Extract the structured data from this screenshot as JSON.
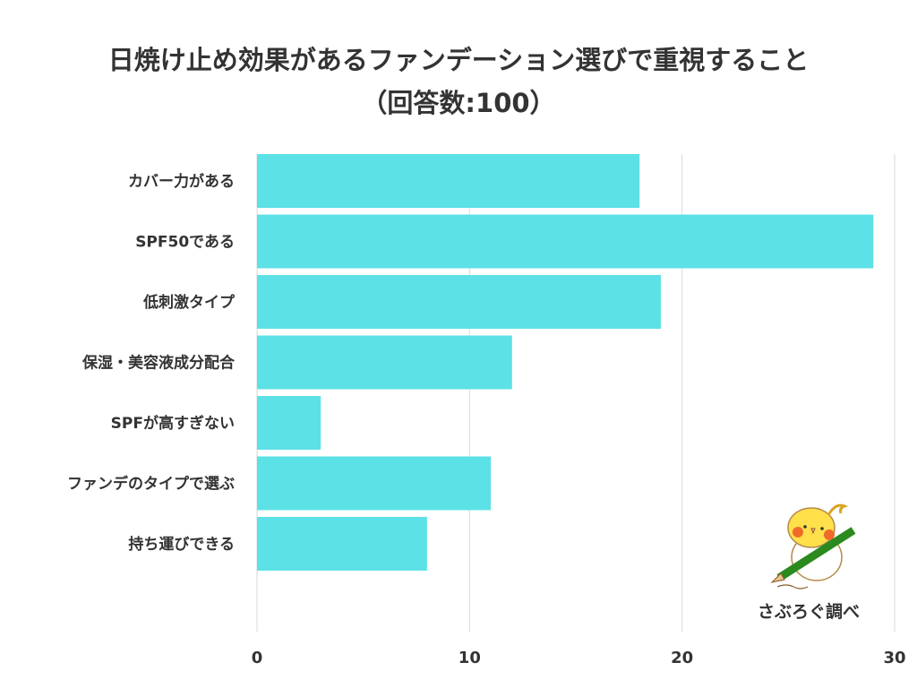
{
  "chart_data": {
    "type": "bar",
    "orientation": "horizontal",
    "title": "日焼け止め効果があるファンデーション選びで重視すること",
    "subtitle": "（回答数:100）",
    "categories": [
      "カバー力がある",
      "SPF50である",
      "低刺激タイプ",
      "保湿・美容液成分配合",
      "SPFが高すぎない",
      "ファンデのタイプで選ぶ",
      "持ち運びできる"
    ],
    "values": [
      18,
      29,
      19,
      12,
      3,
      11,
      8
    ],
    "xlim": [
      0,
      30
    ],
    "xticks": [
      "0",
      "10",
      "20",
      "30"
    ],
    "grid": true,
    "bar_color": "#5ce1e6",
    "grid_color": "#e0e0e0"
  },
  "credit": "さぶろぐ調べ",
  "mascot_icon": "cockatiel-with-pencil"
}
